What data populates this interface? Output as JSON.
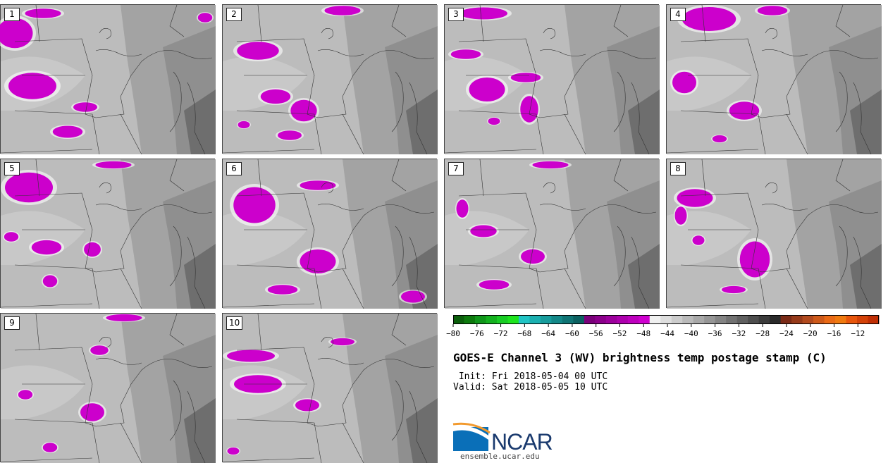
{
  "panels": [
    {
      "label": "1"
    },
    {
      "label": "2"
    },
    {
      "label": "3"
    },
    {
      "label": "4"
    },
    {
      "label": "5"
    },
    {
      "label": "6"
    },
    {
      "label": "7"
    },
    {
      "label": "8"
    },
    {
      "label": "9"
    },
    {
      "label": "10"
    }
  ],
  "colorbar": {
    "ticks": [
      "−80",
      "−76",
      "−72",
      "−68",
      "−64",
      "−60",
      "−56",
      "−52",
      "−48",
      "−44",
      "−40",
      "−36",
      "−32",
      "−28",
      "−24",
      "−20",
      "−16",
      "−12"
    ],
    "colors": [
      "#0b5e0b",
      "#0d7a0d",
      "#10961a",
      "#14b11f",
      "#18cc24",
      "#1ee41e",
      "#20c4c4",
      "#1bb0b0",
      "#179c9c",
      "#138888",
      "#0f7474",
      "#0b6060",
      "#7a007a",
      "#8b008b",
      "#9c009c",
      "#ad00ad",
      "#be00be",
      "#cf00cf",
      "#f0f0f0",
      "#dedede",
      "#cccccc",
      "#bababa",
      "#a8a8a8",
      "#969696",
      "#848484",
      "#727272",
      "#606060",
      "#4e4e4e",
      "#3c3c3c",
      "#2a2a2a",
      "#7a2a16",
      "#963a1a",
      "#b24a1e",
      "#ce5a1a",
      "#ea6a16",
      "#f07a10",
      "#e8560c",
      "#d44208",
      "#c02e04"
    ]
  },
  "title": "GOES-E Channel 3 (WV) brightness temp postage stamp (C)",
  "init": " Init: Fri 2018-05-04 00 UTC",
  "valid": "Valid: Sat 2018-05-05 10 UTC",
  "logo": {
    "name": "NCAR",
    "url": "ensemble.ucar.edu"
  },
  "colors": {
    "cold_cloud": "#cc00cc",
    "background_gray": "#b9b9b9",
    "map_lines": "#333333"
  }
}
